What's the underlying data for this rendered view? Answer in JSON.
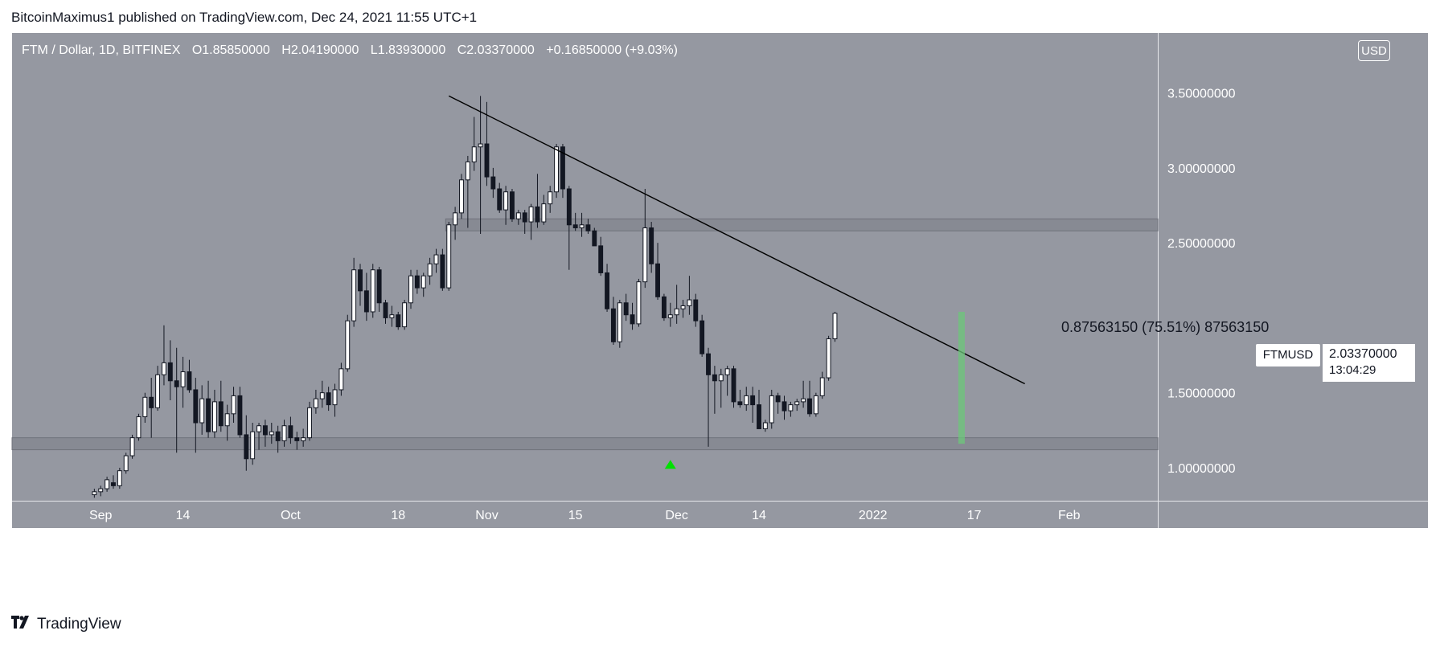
{
  "publisher_line": "BitcoinMaximus1 published on TradingView.com, Dec 24, 2021 11:55 UTC+1",
  "legend": {
    "symbol": "FTM / Dollar, 1D, BITFINEX",
    "o_label": "O",
    "o": "1.85850000",
    "h_label": "H",
    "h": "2.04190000",
    "l_label": "L",
    "l": "1.83930000",
    "c_label": "C",
    "c": "2.03370000",
    "change": "+0.16850000 (+9.03%)"
  },
  "currency_badge": "USD",
  "ticker_label": "FTMUSD",
  "last_price": "2.03370000",
  "countdown": "13:04:29",
  "measurement": "0.87563150 (75.51%) 87563150",
  "brand": "TradingView",
  "colors": {
    "pane_bg": "#9598a1",
    "candle_up": "#ffffff",
    "candle_down": "#131722",
    "zone_fill": "#878a93",
    "measure_bar": "#6cc77a",
    "arrow": "#00e000"
  },
  "chart_data": {
    "type": "candlestick",
    "symbol": "FTMUSD",
    "interval": "1D",
    "y_axis": {
      "range": [
        0.78,
        3.9
      ],
      "ticks": [
        {
          "value": 3.5,
          "label": "3.50000000"
        },
        {
          "value": 3.0,
          "label": "3.00000000"
        },
        {
          "value": 2.5,
          "label": "2.50000000"
        },
        {
          "value": 1.5,
          "label": "1.50000000"
        },
        {
          "value": 1.0,
          "label": "1.00000000"
        }
      ]
    },
    "x_axis": {
      "range_days": [
        -14,
        167
      ],
      "ticks": [
        {
          "day": 0,
          "label": "Sep"
        },
        {
          "day": 13,
          "label": "14"
        },
        {
          "day": 30,
          "label": "Oct"
        },
        {
          "day": 47,
          "label": "18"
        },
        {
          "day": 61,
          "label": "Nov"
        },
        {
          "day": 75,
          "label": "15"
        },
        {
          "day": 91,
          "label": "Dec"
        },
        {
          "day": 104,
          "label": "14"
        },
        {
          "day": 122,
          "label": "2022"
        },
        {
          "day": 138,
          "label": "17"
        },
        {
          "day": 153,
          "label": "Feb"
        }
      ]
    },
    "first_candle_day": -1,
    "candles_ohlc": [
      [
        0.82,
        0.86,
        0.8,
        0.84
      ],
      [
        0.84,
        0.88,
        0.81,
        0.86
      ],
      [
        0.86,
        0.94,
        0.84,
        0.92
      ],
      [
        0.9,
        0.95,
        0.86,
        0.88
      ],
      [
        0.88,
        1.0,
        0.86,
        0.98
      ],
      [
        0.98,
        1.1,
        0.96,
        1.08
      ],
      [
        1.08,
        1.22,
        1.06,
        1.2
      ],
      [
        1.2,
        1.36,
        1.18,
        1.34
      ],
      [
        1.34,
        1.5,
        1.3,
        1.47
      ],
      [
        1.47,
        1.6,
        1.2,
        1.4
      ],
      [
        1.4,
        1.68,
        1.38,
        1.62
      ],
      [
        1.62,
        1.95,
        1.55,
        1.7
      ],
      [
        1.7,
        1.85,
        1.45,
        1.58
      ],
      [
        1.58,
        1.8,
        1.1,
        1.54
      ],
      [
        1.54,
        1.74,
        1.4,
        1.64
      ],
      [
        1.64,
        1.72,
        1.5,
        1.52
      ],
      [
        1.52,
        1.6,
        1.1,
        1.3
      ],
      [
        1.3,
        1.55,
        1.22,
        1.46
      ],
      [
        1.46,
        1.58,
        1.2,
        1.24
      ],
      [
        1.24,
        1.52,
        1.2,
        1.44
      ],
      [
        1.44,
        1.58,
        1.24,
        1.28
      ],
      [
        1.28,
        1.42,
        1.18,
        1.36
      ],
      [
        1.36,
        1.54,
        1.3,
        1.48
      ],
      [
        1.48,
        1.54,
        1.2,
        1.22
      ],
      [
        1.22,
        1.35,
        0.98,
        1.06
      ],
      [
        1.06,
        1.3,
        1.02,
        1.24
      ],
      [
        1.24,
        1.3,
        1.12,
        1.28
      ],
      [
        1.28,
        1.32,
        1.14,
        1.22
      ],
      [
        1.22,
        1.3,
        1.16,
        1.24
      ],
      [
        1.24,
        1.28,
        1.1,
        1.18
      ],
      [
        1.18,
        1.32,
        1.14,
        1.28
      ],
      [
        1.28,
        1.34,
        1.16,
        1.2
      ],
      [
        1.2,
        1.24,
        1.12,
        1.18
      ],
      [
        1.18,
        1.26,
        1.14,
        1.2
      ],
      [
        1.2,
        1.44,
        1.18,
        1.4
      ],
      [
        1.4,
        1.52,
        1.36,
        1.46
      ],
      [
        1.46,
        1.58,
        1.4,
        1.5
      ],
      [
        1.5,
        1.54,
        1.38,
        1.42
      ],
      [
        1.42,
        1.56,
        1.34,
        1.52
      ],
      [
        1.52,
        1.7,
        1.48,
        1.66
      ],
      [
        1.66,
        2.02,
        1.64,
        1.98
      ],
      [
        1.98,
        2.4,
        1.94,
        2.32
      ],
      [
        2.32,
        2.36,
        2.08,
        2.18
      ],
      [
        2.18,
        2.3,
        1.98,
        2.04
      ],
      [
        2.04,
        2.36,
        2.0,
        2.32
      ],
      [
        2.32,
        2.34,
        2.04,
        2.1
      ],
      [
        2.1,
        2.12,
        1.96,
        2.0
      ],
      [
        2.0,
        2.08,
        1.94,
        2.02
      ],
      [
        2.02,
        2.04,
        1.92,
        1.94
      ],
      [
        1.94,
        2.12,
        1.92,
        2.1
      ],
      [
        2.1,
        2.32,
        2.06,
        2.28
      ],
      [
        2.28,
        2.32,
        2.16,
        2.2
      ],
      [
        2.2,
        2.3,
        2.14,
        2.28
      ],
      [
        2.28,
        2.4,
        2.22,
        2.36
      ],
      [
        2.36,
        2.46,
        2.3,
        2.42
      ],
      [
        2.42,
        2.46,
        2.18,
        2.2
      ],
      [
        2.2,
        2.64,
        2.18,
        2.62
      ],
      [
        2.62,
        2.74,
        2.52,
        2.7
      ],
      [
        2.7,
        2.96,
        2.66,
        2.92
      ],
      [
        2.92,
        3.08,
        2.6,
        3.04
      ],
      [
        3.04,
        3.34,
        2.98,
        3.14
      ],
      [
        3.14,
        3.48,
        2.56,
        3.16
      ],
      [
        3.16,
        3.44,
        2.88,
        2.94
      ],
      [
        2.94,
        3.0,
        2.8,
        2.86
      ],
      [
        2.86,
        2.9,
        2.7,
        2.72
      ],
      [
        2.72,
        2.88,
        2.62,
        2.84
      ],
      [
        2.84,
        2.86,
        2.64,
        2.66
      ],
      [
        2.66,
        2.72,
        2.62,
        2.7
      ],
      [
        2.7,
        2.72,
        2.56,
        2.64
      ],
      [
        2.64,
        2.76,
        2.52,
        2.74
      ],
      [
        2.74,
        2.96,
        2.6,
        2.64
      ],
      [
        2.64,
        2.82,
        2.62,
        2.76
      ],
      [
        2.76,
        2.88,
        2.7,
        2.84
      ],
      [
        2.84,
        3.16,
        2.8,
        3.14
      ],
      [
        3.14,
        3.16,
        2.8,
        2.86
      ],
      [
        2.86,
        2.88,
        2.32,
        2.62
      ],
      [
        2.62,
        2.7,
        2.58,
        2.6
      ],
      [
        2.6,
        2.7,
        2.54,
        2.62
      ],
      [
        2.62,
        2.66,
        2.56,
        2.58
      ],
      [
        2.58,
        2.6,
        2.48,
        2.48
      ],
      [
        2.48,
        2.54,
        2.28,
        2.3
      ],
      [
        2.3,
        2.36,
        2.04,
        2.06
      ],
      [
        2.06,
        2.14,
        1.82,
        1.84
      ],
      [
        1.84,
        2.12,
        1.8,
        2.1
      ],
      [
        2.1,
        2.16,
        1.98,
        2.02
      ],
      [
        2.02,
        2.1,
        1.92,
        1.96
      ],
      [
        1.96,
        2.26,
        1.94,
        2.24
      ],
      [
        2.24,
        2.86,
        2.2,
        2.6
      ],
      [
        2.6,
        2.64,
        2.3,
        2.36
      ],
      [
        2.36,
        2.5,
        2.12,
        2.14
      ],
      [
        2.14,
        2.16,
        1.98,
        2.0
      ],
      [
        2.0,
        2.1,
        1.94,
        2.02
      ],
      [
        2.02,
        2.22,
        1.96,
        2.06
      ],
      [
        2.06,
        2.12,
        2.0,
        2.08
      ],
      [
        2.08,
        2.28,
        2.02,
        2.12
      ],
      [
        2.12,
        2.16,
        1.94,
        1.98
      ],
      [
        1.98,
        2.02,
        1.74,
        1.76
      ],
      [
        1.76,
        1.8,
        1.14,
        1.62
      ],
      [
        1.62,
        1.68,
        1.36,
        1.58
      ],
      [
        1.58,
        1.66,
        1.4,
        1.62
      ],
      [
        1.62,
        1.68,
        1.48,
        1.66
      ],
      [
        1.66,
        1.68,
        1.4,
        1.44
      ],
      [
        1.44,
        1.52,
        1.4,
        1.42
      ],
      [
        1.42,
        1.54,
        1.38,
        1.48
      ],
      [
        1.48,
        1.54,
        1.3,
        1.42
      ],
      [
        1.42,
        1.52,
        1.26,
        1.26
      ],
      [
        1.26,
        1.32,
        1.24,
        1.3
      ],
      [
        1.3,
        1.52,
        1.26,
        1.48
      ],
      [
        1.48,
        1.5,
        1.36,
        1.44
      ],
      [
        1.44,
        1.48,
        1.32,
        1.38
      ],
      [
        1.38,
        1.44,
        1.34,
        1.42
      ],
      [
        1.42,
        1.46,
        1.38,
        1.44
      ],
      [
        1.44,
        1.58,
        1.4,
        1.46
      ],
      [
        1.46,
        1.58,
        1.34,
        1.36
      ],
      [
        1.36,
        1.5,
        1.34,
        1.48
      ],
      [
        1.48,
        1.64,
        1.46,
        1.6
      ],
      [
        1.6,
        1.88,
        1.58,
        1.86
      ],
      [
        1.86,
        2.04,
        1.84,
        2.03
      ]
    ],
    "resistance_zone": [
      2.58,
      2.66
    ],
    "support_zone": [
      1.12,
      1.2
    ],
    "trendline": {
      "start": {
        "day": 55,
        "price": 3.48
      },
      "end": {
        "day": 146,
        "price": 1.56
      }
    },
    "measure_bar": {
      "day": 136,
      "from": 1.16,
      "to": 2.04
    },
    "arrow_marker": {
      "day": 90,
      "price": 1.02
    }
  }
}
